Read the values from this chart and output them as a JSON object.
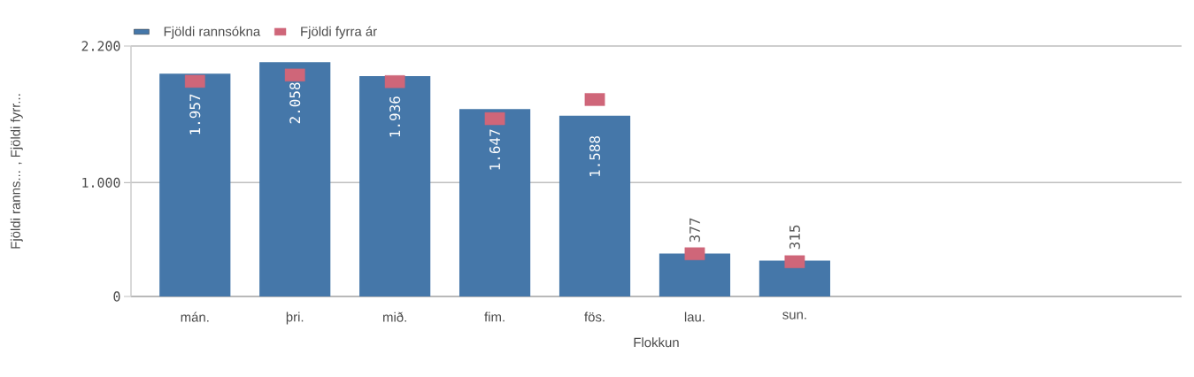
{
  "chart_data": {
    "type": "bar",
    "xlabel": "Flokkun",
    "ylabel": "Fjöldi ranns...   , Fjöldi fyrr...",
    "categories": [
      "mán.",
      "þri.",
      "mið.",
      "fim.",
      "fös.",
      "lau.",
      "sun."
    ],
    "series": [
      {
        "name": "Fjöldi rannsókna",
        "color": "#4577a9",
        "values": [
          1957,
          2058,
          1936,
          1647,
          1588,
          377,
          315
        ],
        "value_labels": [
          "1.957",
          "2.058",
          "1.936",
          "1.647",
          "1.588",
          "377",
          "315"
        ]
      },
      {
        "name": "Fjöldi fyrra ár",
        "type": "scatter",
        "marker": "square",
        "color": "#cf6679",
        "values": [
          1890,
          1945,
          1887,
          1562,
          1730,
          375,
          305
        ]
      }
    ],
    "ylim": [
      0,
      2200
    ],
    "yticks": [
      {
        "value": 0,
        "label": "0"
      },
      {
        "value": 1000,
        "label": "1.000"
      },
      {
        "value": 2200,
        "label": "2.200"
      }
    ],
    "grid": "y",
    "legend": "top left"
  }
}
